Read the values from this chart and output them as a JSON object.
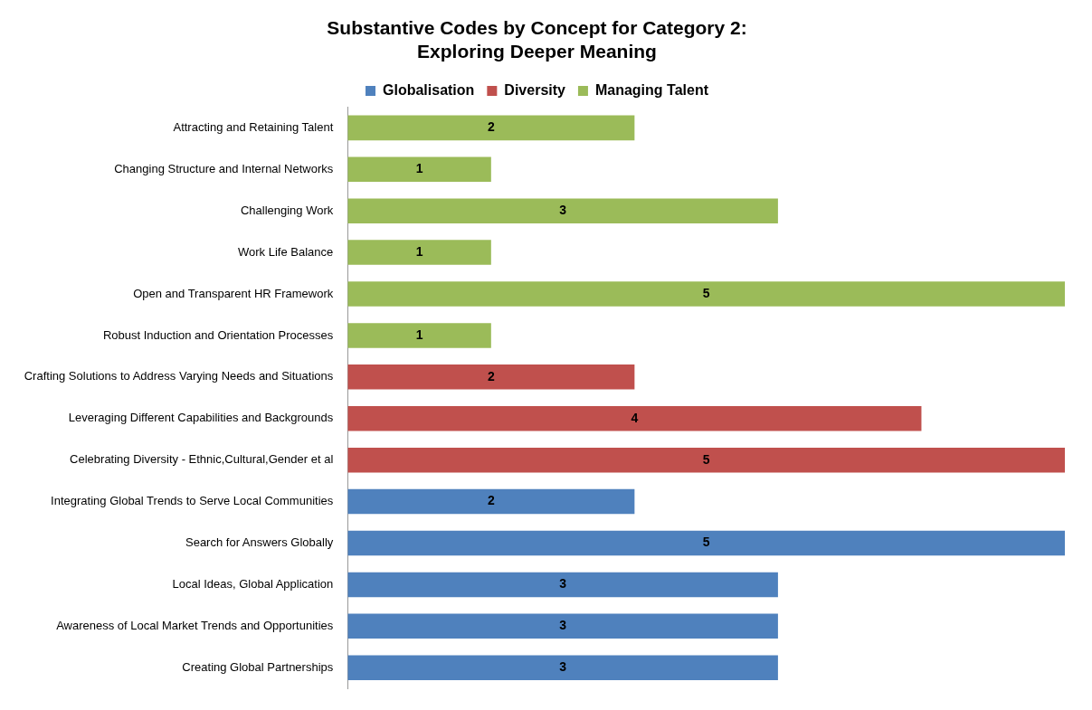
{
  "chart_data": {
    "type": "bar",
    "orientation": "horizontal",
    "title": "Substantive Codes by Concept for Category 2:\nExploring Deeper Meaning",
    "categories": [
      "Attracting and Retaining Talent",
      "Changing Structure and Internal Networks",
      "Challenging Work",
      "Work Life Balance",
      "Open and Transparent HR Framework",
      "Robust Induction and Orientation Processes",
      "Crafting Solutions to Address Varying Needs and Situations",
      "Leveraging Different Capabilities and Backgrounds",
      "Celebrating Diversity - Ethnic,Cultural,Gender et al",
      "Integrating Global Trends to Serve Local Communities",
      "Search for Answers Globally",
      "Local Ideas, Global Application",
      "Awareness of Local Market Trends and Opportunities",
      "Creating Global Partnerships"
    ],
    "series": [
      {
        "name": "Globalisation",
        "color": "#4f81bd",
        "values": [
          null,
          null,
          null,
          null,
          null,
          null,
          null,
          null,
          null,
          2,
          5,
          3,
          3,
          3
        ]
      },
      {
        "name": "Diversity",
        "color": "#c0504d",
        "values": [
          null,
          null,
          null,
          null,
          null,
          null,
          2,
          4,
          5,
          null,
          null,
          null,
          null,
          null
        ]
      },
      {
        "name": "Managing Talent",
        "color": "#9bbb59",
        "values": [
          2,
          1,
          3,
          1,
          5,
          1,
          null,
          null,
          null,
          null,
          null,
          null,
          null,
          null
        ]
      }
    ],
    "data_labels": true,
    "legend": "top",
    "grid": false,
    "tick_labels": "y"
  }
}
